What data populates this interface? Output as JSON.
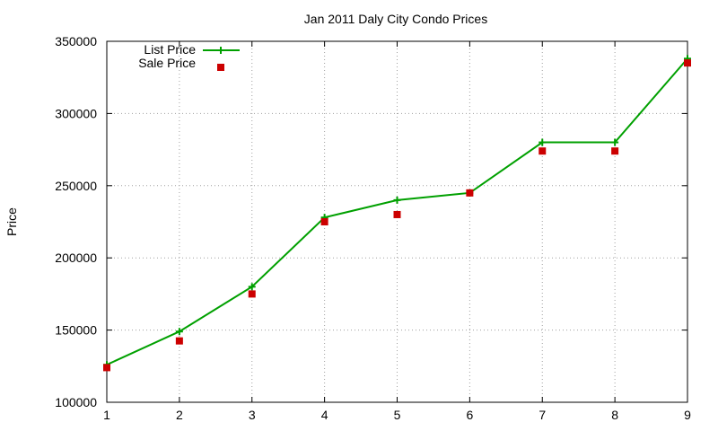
{
  "chart_data": {
    "type": "line",
    "title": "Jan 2011 Daly City Condo Prices",
    "xlabel": "",
    "ylabel": "Price",
    "x": [
      1,
      2,
      3,
      4,
      5,
      6,
      7,
      8,
      9
    ],
    "xlim": [
      1,
      9
    ],
    "ylim": [
      100000,
      350000
    ],
    "x_ticks": [
      "1",
      "2",
      "3",
      "4",
      "5",
      "6",
      "7",
      "8",
      "9"
    ],
    "y_ticks": [
      "100000",
      "150000",
      "200000",
      "250000",
      "300000",
      "350000"
    ],
    "grid": true,
    "legend_position": "top-left",
    "series": [
      {
        "name": "List Price",
        "type": "line",
        "marker": "plus",
        "color": "#00a000",
        "values": [
          126000,
          149000,
          180000,
          228000,
          240000,
          245000,
          280000,
          280000,
          338000
        ]
      },
      {
        "name": "Sale Price",
        "type": "scatter",
        "marker": "square",
        "color": "#cc0000",
        "values": [
          124000,
          142500,
          175000,
          225000,
          230000,
          245000,
          274000,
          274000,
          335000
        ]
      }
    ]
  }
}
